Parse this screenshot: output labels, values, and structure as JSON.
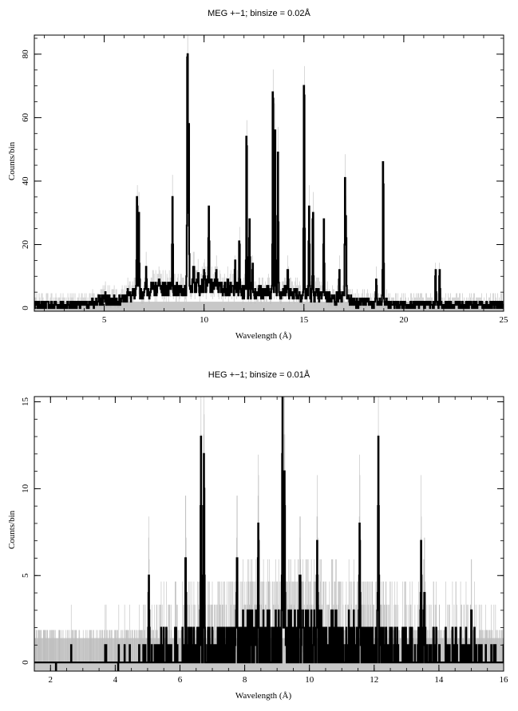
{
  "chart_data": [
    {
      "type": "line",
      "title": "MEG +−1; binsize = 0.02Å",
      "xlabel": "Wavelength (Å)",
      "ylabel": "Counts/bin",
      "xlim": [
        1.5,
        25
      ],
      "ylim": [
        -1,
        86
      ],
      "xticks": [
        5,
        10,
        15,
        20,
        25
      ],
      "yticks": [
        0,
        20,
        40,
        60,
        80
      ],
      "grid": false,
      "legend": "none",
      "series": [
        {
          "style": "histogram-step",
          "color": "#000000",
          "baseline": 1,
          "continuum": [
            [
              1.5,
              1
            ],
            [
              3.5,
              1
            ],
            [
              4.5,
              1.5
            ],
            [
              5,
              3
            ],
            [
              5.5,
              2
            ],
            [
              6,
              3
            ],
            [
              6.5,
              4
            ],
            [
              7,
              5
            ],
            [
              7.5,
              6
            ],
            [
              8,
              6
            ],
            [
              8.5,
              5
            ],
            [
              9,
              6
            ],
            [
              9.5,
              7
            ],
            [
              10,
              7
            ],
            [
              10.5,
              7
            ],
            [
              11,
              6
            ],
            [
              11.5,
              6
            ],
            [
              12,
              5
            ],
            [
              12.5,
              5
            ],
            [
              13,
              5
            ],
            [
              13.5,
              5
            ],
            [
              14,
              5
            ],
            [
              14.5,
              5
            ],
            [
              15,
              4
            ],
            [
              15.5,
              4
            ],
            [
              16,
              4
            ],
            [
              16.5,
              3
            ],
            [
              17,
              3
            ],
            [
              17.5,
              2
            ],
            [
              18,
              2
            ],
            [
              18.5,
              1.5
            ],
            [
              19,
              1.5
            ],
            [
              19.5,
              1
            ],
            [
              20,
              1
            ],
            [
              21,
              1
            ],
            [
              22,
              1
            ],
            [
              25,
              1
            ]
          ],
          "peaks": [
            {
              "x": 5.05,
              "y": 4
            },
            {
              "x": 6.18,
              "y": 8
            },
            {
              "x": 6.65,
              "y": 36
            },
            {
              "x": 6.74,
              "y": 29
            },
            {
              "x": 7.1,
              "y": 11
            },
            {
              "x": 7.76,
              "y": 12
            },
            {
              "x": 8.42,
              "y": 32
            },
            {
              "x": 8.8,
              "y": 10
            },
            {
              "x": 9.17,
              "y": 85
            },
            {
              "x": 9.23,
              "y": 60
            },
            {
              "x": 9.48,
              "y": 16
            },
            {
              "x": 9.71,
              "y": 14
            },
            {
              "x": 10.02,
              "y": 14
            },
            {
              "x": 10.24,
              "y": 30
            },
            {
              "x": 10.62,
              "y": 12
            },
            {
              "x": 11.17,
              "y": 12
            },
            {
              "x": 11.55,
              "y": 17
            },
            {
              "x": 11.77,
              "y": 20
            },
            {
              "x": 12.13,
              "y": 60
            },
            {
              "x": 12.28,
              "y": 30
            },
            {
              "x": 12.43,
              "y": 15
            },
            {
              "x": 13.45,
              "y": 71
            },
            {
              "x": 13.55,
              "y": 63
            },
            {
              "x": 13.7,
              "y": 54
            },
            {
              "x": 14.2,
              "y": 15
            },
            {
              "x": 15.01,
              "y": 79
            },
            {
              "x": 15.26,
              "y": 33
            },
            {
              "x": 15.45,
              "y": 30
            },
            {
              "x": 16.0,
              "y": 27
            },
            {
              "x": 16.78,
              "y": 11
            },
            {
              "x": 17.06,
              "y": 38
            },
            {
              "x": 17.1,
              "y": 34
            },
            {
              "x": 18.63,
              "y": 8
            },
            {
              "x": 18.97,
              "y": 49
            },
            {
              "x": 21.6,
              "y": 14
            },
            {
              "x": 21.8,
              "y": 14
            }
          ]
        },
        {
          "style": "error-band",
          "color": "#c8c8c8",
          "description_values": "gray shaded background level ~1 count and thin gray error bars"
        }
      ]
    },
    {
      "type": "line",
      "title": "HEG +−1; binsize = 0.01Å",
      "xlabel": "Wavelength (Å)",
      "ylabel": "Counts/bin",
      "xlim": [
        1.5,
        16
      ],
      "ylim": [
        -0.5,
        15.3
      ],
      "xticks": [
        2,
        4,
        6,
        8,
        10,
        12,
        14,
        16
      ],
      "yticks": [
        0,
        5,
        10,
        15
      ],
      "grid": false,
      "legend": "none",
      "series": [
        {
          "style": "histogram-step",
          "color": "#000000",
          "baseline": 0,
          "continuum": [
            [
              1.5,
              0
            ],
            [
              4.5,
              0.3
            ],
            [
              5,
              0.6
            ],
            [
              6,
              1
            ],
            [
              7,
              1.4
            ],
            [
              8,
              1.8
            ],
            [
              9,
              2
            ],
            [
              10,
              2
            ],
            [
              11,
              1.8
            ],
            [
              12,
              1.5
            ],
            [
              13,
              1.2
            ],
            [
              14,
              0.9
            ],
            [
              15,
              0.7
            ],
            [
              16,
              0.5
            ]
          ],
          "peaks": [
            {
              "x": 4.73,
              "y": 2
            },
            {
              "x": 5.04,
              "y": 5
            },
            {
              "x": 6.18,
              "y": 6
            },
            {
              "x": 6.65,
              "y": 13
            },
            {
              "x": 6.74,
              "y": 13
            },
            {
              "x": 7.76,
              "y": 6
            },
            {
              "x": 8.42,
              "y": 7
            },
            {
              "x": 9.17,
              "y": 15
            },
            {
              "x": 9.23,
              "y": 12
            },
            {
              "x": 9.71,
              "y": 5
            },
            {
              "x": 10.24,
              "y": 6
            },
            {
              "x": 11.55,
              "y": 8
            },
            {
              "x": 12.13,
              "y": 13
            },
            {
              "x": 13.45,
              "y": 6
            },
            {
              "x": 13.55,
              "y": 5
            },
            {
              "x": 15.01,
              "y": 3
            }
          ]
        },
        {
          "style": "error-band",
          "color": "#c8c8c8",
          "description_values": "gray shaded background band up to ~1.4 counts and thin gray error bars"
        }
      ]
    }
  ]
}
